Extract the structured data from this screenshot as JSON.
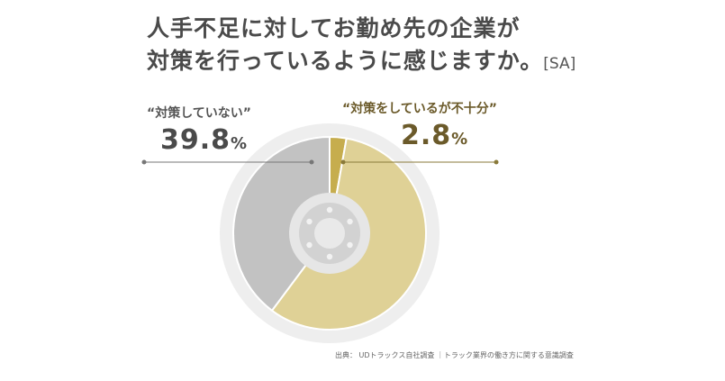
{
  "title": {
    "line1": "人手不足に対してお勤め先の企業が",
    "line2": "対策を行っているように感じますか。",
    "tag": "[SA]"
  },
  "colors": {
    "not_doing": "#c2c2c2",
    "doing_ok": "#dfd196",
    "insufficient": "#c6ad4e",
    "ring": "#eeeeee",
    "hub": "#dcdcdc"
  },
  "labels": {
    "left": {
      "text": "“対策していない”",
      "value": "39.8",
      "unit": "%"
    },
    "right": {
      "text": "“対策をしているが不十分”",
      "value": "2.8",
      "unit": "%"
    }
  },
  "source": "出典： UDトラックス自社調査 ｜トラック業界の働き方に関する意識調査",
  "chart_data": {
    "type": "pie",
    "title": "人手不足に対してお勤め先の企業が対策を行っているように感じますか。[SA]",
    "slices": [
      {
        "label": "対策をしているが不十分",
        "value": 2.8,
        "color": "#c6ad4e"
      },
      {
        "label": "",
        "value": 57.4,
        "color": "#dfd196"
      },
      {
        "label": "対策していない",
        "value": 39.8,
        "color": "#c2c2c2"
      }
    ],
    "legend": "none"
  }
}
